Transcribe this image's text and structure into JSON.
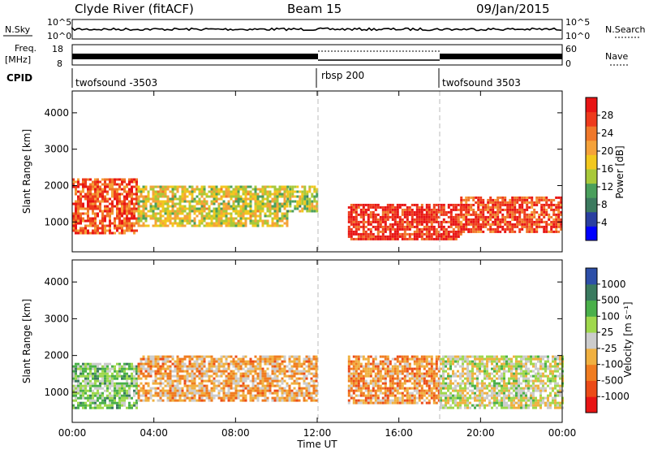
{
  "header": {
    "station": "Clyde River (fitACF)",
    "beam": "Beam 15",
    "date": "09/Jan/2015"
  },
  "strip_noise": {
    "left_label": "N.Sky",
    "right_label": "N.Search",
    "left_ticks": [
      "10^5",
      "10^0"
    ],
    "right_ticks": [
      "10^5",
      "10^0"
    ]
  },
  "strip_freq": {
    "left_label_1": "Freq.",
    "left_label_2": "[MHz]",
    "left_ticks": [
      "18",
      "8"
    ],
    "right_label": "Nave",
    "right_ticks": [
      "60",
      "0"
    ]
  },
  "strip_cpid": {
    "label": "CPID",
    "segments": [
      {
        "name": "twofsound -3503",
        "start_hour": 0,
        "end_hour": 12
      },
      {
        "name": "rbsp 200",
        "start_hour": 12,
        "end_hour": 18
      },
      {
        "name": "twofsound 3503",
        "start_hour": 18,
        "end_hour": 24
      }
    ]
  },
  "power_panel": {
    "ylabel": "Slant Range [km]",
    "yticks": [
      "1000",
      "2000",
      "3000",
      "4000"
    ],
    "colorbar_label": "Power [dB]",
    "colorbar_ticks": [
      "28",
      "24",
      "20",
      "16",
      "12",
      "8",
      "4"
    ]
  },
  "velocity_panel": {
    "ylabel": "Slant Range [km]",
    "yticks": [
      "1000",
      "2000",
      "3000",
      "4000"
    ],
    "colorbar_label": "Velocity [m s⁻¹]",
    "colorbar_ticks": [
      "1000",
      "500",
      "100",
      "25",
      "-25",
      "-100",
      "-500",
      "-1000"
    ]
  },
  "xaxis": {
    "label": "Time UT",
    "ticks": [
      "00:00",
      "04:00",
      "08:00",
      "12:00",
      "16:00",
      "20:00",
      "00:00"
    ]
  },
  "colors": {
    "power_scale": [
      "#0000ff",
      "#2a3fa0",
      "#3c7a5f",
      "#4a9f5c",
      "#a8c93a",
      "#f2c81e",
      "#f5a23a",
      "#f0782a",
      "#ee3a1c",
      "#e81414"
    ],
    "velocity_scale": [
      "#e81414",
      "#ec4b17",
      "#f07c20",
      "#f0b040",
      "#cccccc",
      "#9fd84c",
      "#4ab04a",
      "#3a7a5f",
      "#2d4fa8"
    ]
  },
  "chart_data": {
    "type": "heatmap",
    "x_range_hours": [
      0,
      24
    ],
    "y_range_km": [
      180,
      4600
    ],
    "panels": [
      {
        "name": "Power",
        "units": "dB",
        "color_range": [
          0,
          30
        ],
        "dominant_echo_bands": [
          {
            "start_hour": 0,
            "end_hour": 3.2,
            "range_km": [
              700,
              2200
            ],
            "value": 24
          },
          {
            "start_hour": 3.2,
            "end_hour": 10.5,
            "range_km": [
              900,
              2000
            ],
            "value": 16
          },
          {
            "start_hour": 10.5,
            "end_hour": 12,
            "range_km": [
              1300,
              2000
            ],
            "value": 14
          },
          {
            "start_hour": 13.5,
            "end_hour": 19,
            "range_km": [
              500,
              1500
            ],
            "value": 27
          },
          {
            "start_hour": 19,
            "end_hour": 24,
            "range_km": [
              700,
              1700
            ],
            "value": 25
          }
        ]
      },
      {
        "name": "Velocity",
        "units": "m s^-1",
        "color_range": [
          -1000,
          1000
        ],
        "dominant_echo_bands": [
          {
            "start_hour": 0,
            "end_hour": 3.2,
            "range_km": [
              600,
              1800
            ],
            "value": 300
          },
          {
            "start_hour": 3.2,
            "end_hour": 12,
            "range_km": [
              800,
              2000
            ],
            "value": -250
          },
          {
            "start_hour": 13.5,
            "end_hour": 18,
            "range_km": [
              700,
              2000
            ],
            "value": -350
          },
          {
            "start_hour": 18,
            "end_hour": 24,
            "range_km": [
              600,
              2000
            ],
            "value": 60
          }
        ]
      }
    ]
  }
}
